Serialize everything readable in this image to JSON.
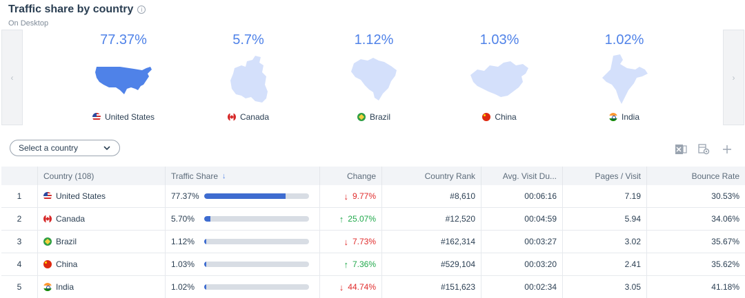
{
  "header": {
    "title": "Traffic share by country",
    "subtitle": "On Desktop"
  },
  "carousel": {
    "prev_icon": "chevron-left-icon",
    "next_icon": "chevron-right-icon",
    "cards": [
      {
        "share": "77.37%",
        "country": "United States",
        "flag": "us-flag-icon",
        "highlight_color": "#4f82e8"
      },
      {
        "share": "5.7%",
        "country": "Canada",
        "flag": "canada-flag-icon",
        "highlight_color": "#d4e0fb"
      },
      {
        "share": "1.12%",
        "country": "Brazil",
        "flag": "brazil-flag-icon",
        "highlight_color": "#d4e0fb"
      },
      {
        "share": "1.03%",
        "country": "China",
        "flag": "china-flag-icon",
        "highlight_color": "#d4e0fb"
      },
      {
        "share": "1.02%",
        "country": "India",
        "flag": "india-flag-icon",
        "highlight_color": "#d4e0fb"
      }
    ]
  },
  "filter": {
    "select_label": "Select a country"
  },
  "toolbar": {
    "icons": [
      "excel-export-icon",
      "table-settings-icon",
      "add-icon"
    ]
  },
  "table": {
    "headers": {
      "country": "Country (108)",
      "traffic_share": "Traffic Share",
      "change": "Change",
      "country_rank": "Country Rank",
      "avg_visit": "Avg. Visit Du...",
      "pages_visit": "Pages / Visit",
      "bounce_rate": "Bounce Rate"
    },
    "rows": [
      {
        "idx": "1",
        "country": "United States",
        "share": "77.37%",
        "share_fraction": 0.7737,
        "change": "9.77%",
        "direction": "down",
        "rank": "#8,610",
        "visit": "00:06:16",
        "pages": "7.19",
        "bounce": "30.53%"
      },
      {
        "idx": "2",
        "country": "Canada",
        "share": "5.70%",
        "share_fraction": 0.057,
        "change": "25.07%",
        "direction": "up",
        "rank": "#12,520",
        "visit": "00:04:59",
        "pages": "5.94",
        "bounce": "34.06%"
      },
      {
        "idx": "3",
        "country": "Brazil",
        "share": "1.12%",
        "share_fraction": 0.0112,
        "change": "7.73%",
        "direction": "down",
        "rank": "#162,314",
        "visit": "00:03:27",
        "pages": "3.02",
        "bounce": "35.67%"
      },
      {
        "idx": "4",
        "country": "China",
        "share": "1.03%",
        "share_fraction": 0.0103,
        "change": "7.36%",
        "direction": "up",
        "rank": "#529,104",
        "visit": "00:03:20",
        "pages": "2.41",
        "bounce": "35.62%"
      },
      {
        "idx": "5",
        "country": "India",
        "share": "1.02%",
        "share_fraction": 0.0102,
        "change": "44.74%",
        "direction": "down",
        "rank": "#151,623",
        "visit": "00:02:34",
        "pages": "3.05",
        "bounce": "41.18%"
      }
    ]
  },
  "colors": {
    "accent": "#4f82e8",
    "bar_fill": "#3e6cd0",
    "bar_track": "#d8dde4",
    "change_down": "#e02a2a",
    "change_up": "#1fa84a"
  }
}
